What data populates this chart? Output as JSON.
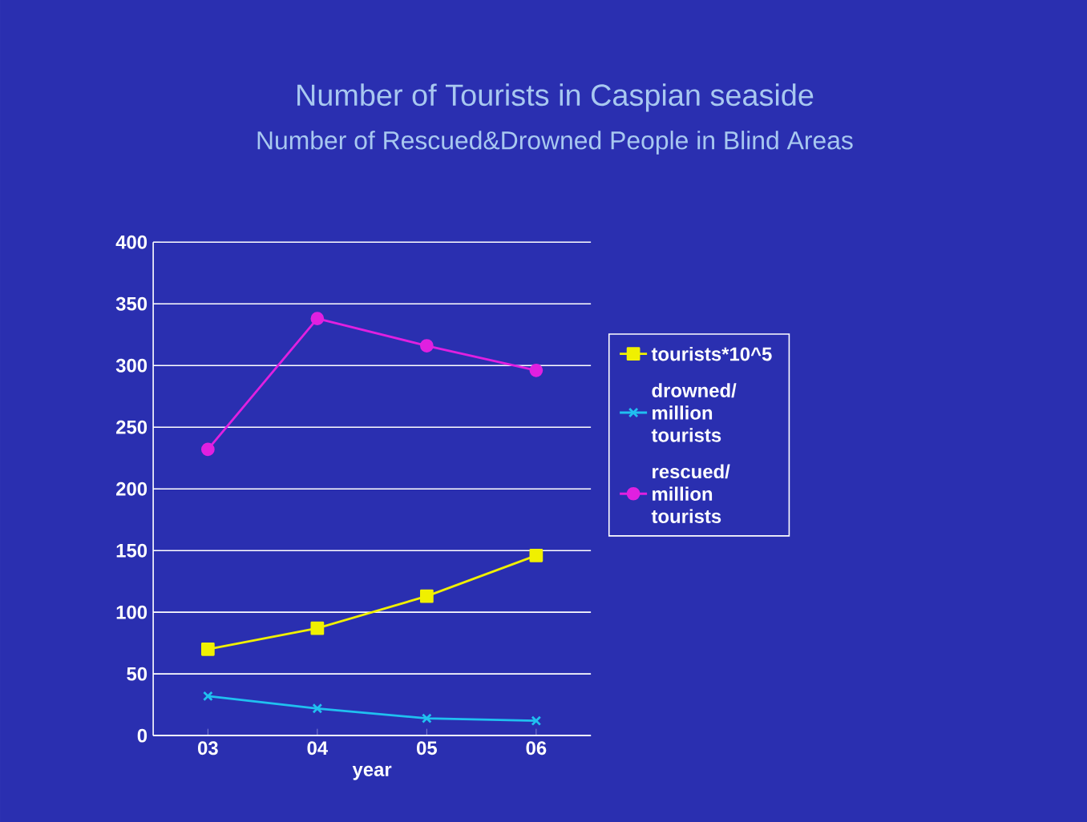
{
  "chart_data": {
    "type": "line",
    "title": "Number of Tourists in Caspian seaside",
    "subtitle": "Number of Rescued&Drowned People in Blind Areas",
    "xlabel": "year",
    "categories": [
      "03",
      "04",
      "05",
      "06"
    ],
    "series": [
      {
        "name": "tourists*10^5",
        "color": "#f0f000",
        "marker": "square",
        "values": [
          70,
          87,
          113,
          146
        ]
      },
      {
        "name": "drowned/ million tourists",
        "color": "#20c0f0",
        "marker": "cross",
        "values": [
          32,
          22,
          14,
          12
        ]
      },
      {
        "name": "rescued/ million tourists",
        "color": "#e020e0",
        "marker": "circle",
        "values": [
          232,
          338,
          316,
          296
        ]
      }
    ],
    "ylim": [
      0,
      400
    ],
    "yticks": [
      0,
      50,
      100,
      150,
      200,
      250,
      300,
      350,
      400
    ],
    "grid": "y",
    "legend": "right",
    "line_style": "solid"
  }
}
